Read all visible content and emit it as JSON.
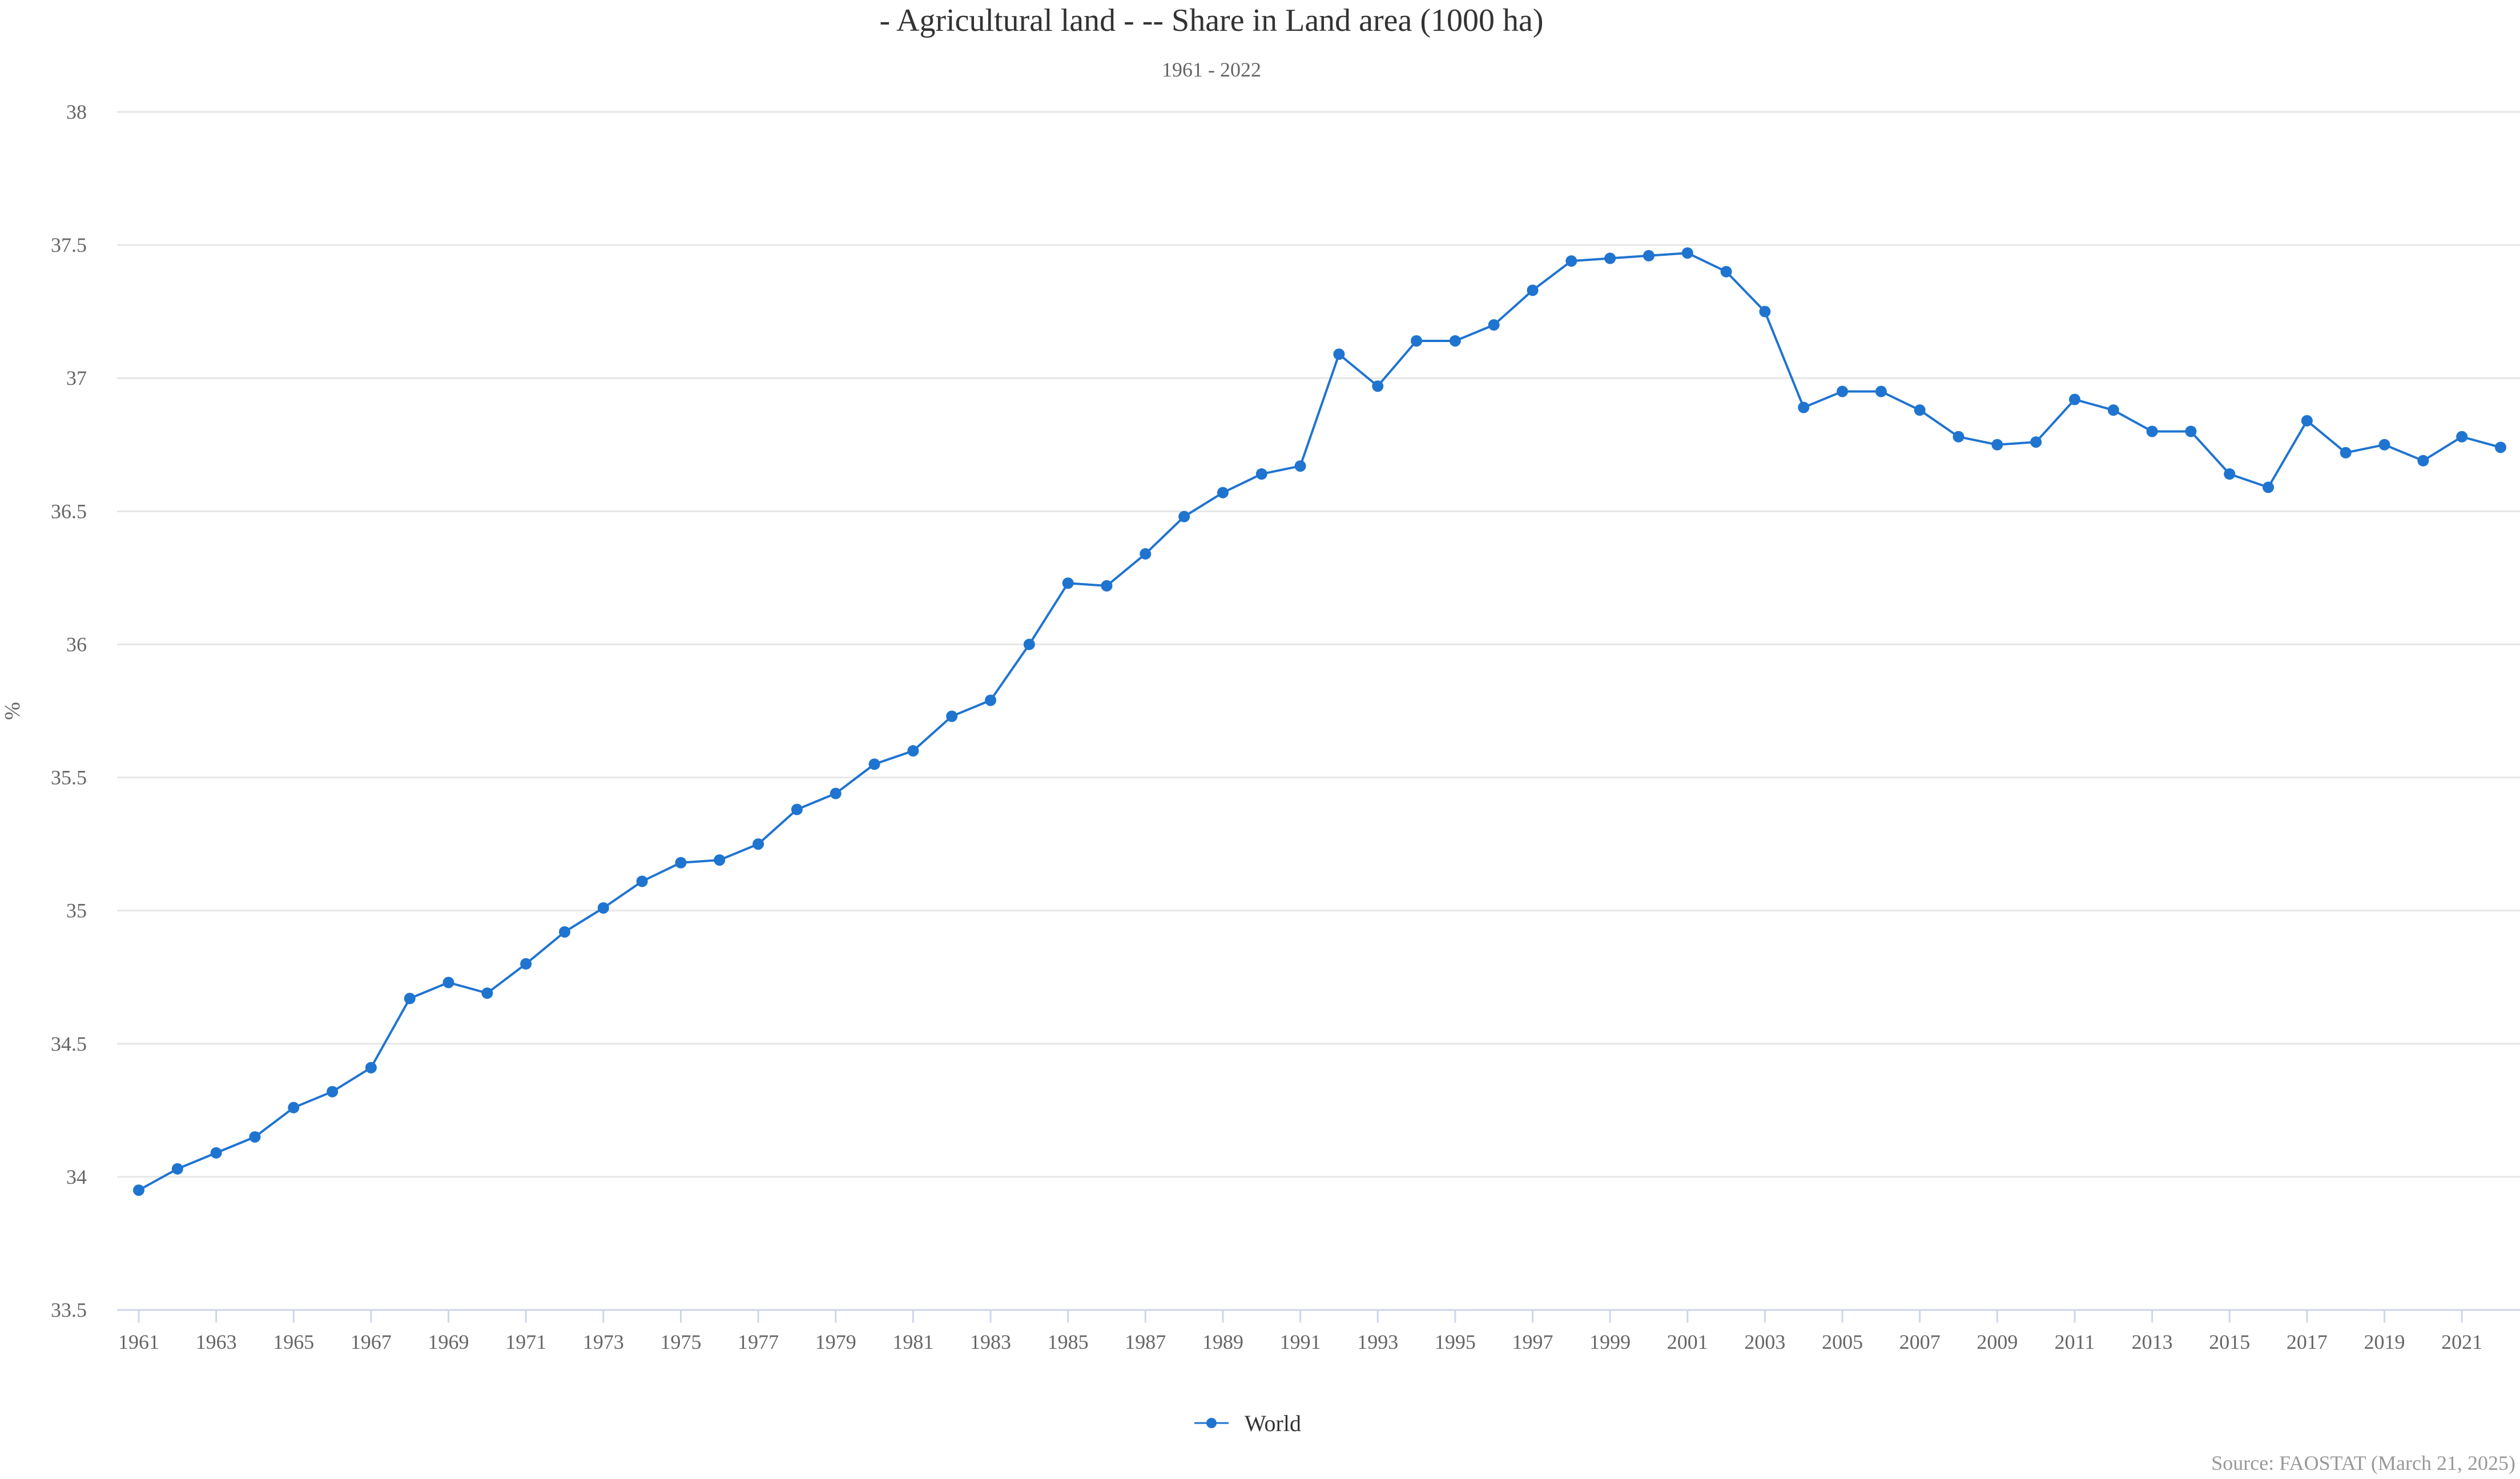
{
  "chart_data": {
    "type": "line",
    "title": "- Agricultural land - -- Share in Land area (1000 ha)",
    "subtitle": "1961 - 2022",
    "xlabel": "",
    "ylabel": "%",
    "ylim": [
      33.5,
      38
    ],
    "yticks": [
      33.5,
      34,
      34.5,
      35,
      35.5,
      36,
      36.5,
      37,
      37.5,
      38
    ],
    "xlim": [
      1961,
      2022
    ],
    "xtick_labels": [
      "1961",
      "1963",
      "1965",
      "1967",
      "1969",
      "1971",
      "1973",
      "1975",
      "1977",
      "1979",
      "1981",
      "1983",
      "1985",
      "1987",
      "1989",
      "1991",
      "1993",
      "1995",
      "1997",
      "1999",
      "2001",
      "2003",
      "2005",
      "2007",
      "2009",
      "2011",
      "2013",
      "2015",
      "2017",
      "2019",
      "2021"
    ],
    "grid": true,
    "legend_position": "bottom-center",
    "colors": {
      "series": "#1f74d0",
      "grid": "#e6e6e6",
      "axis": "#ccd6eb"
    },
    "series": [
      {
        "name": "World",
        "x": [
          1961,
          1962,
          1963,
          1964,
          1965,
          1966,
          1967,
          1968,
          1969,
          1970,
          1971,
          1972,
          1973,
          1974,
          1975,
          1976,
          1977,
          1978,
          1979,
          1980,
          1981,
          1982,
          1983,
          1984,
          1985,
          1986,
          1987,
          1988,
          1989,
          1990,
          1991,
          1992,
          1993,
          1994,
          1995,
          1996,
          1997,
          1998,
          1999,
          2000,
          2001,
          2002,
          2003,
          2004,
          2005,
          2006,
          2007,
          2008,
          2009,
          2010,
          2011,
          2012,
          2013,
          2014,
          2015,
          2016,
          2017,
          2018,
          2019,
          2020,
          2021,
          2022
        ],
        "values": [
          33.95,
          34.03,
          34.09,
          34.15,
          34.26,
          34.32,
          34.41,
          34.67,
          34.73,
          34.69,
          34.8,
          34.92,
          35.01,
          35.11,
          35.18,
          35.19,
          35.25,
          35.38,
          35.44,
          35.55,
          35.6,
          35.73,
          35.79,
          36.0,
          36.23,
          36.22,
          36.34,
          36.48,
          36.57,
          36.64,
          36.67,
          37.09,
          36.97,
          37.14,
          37.14,
          37.2,
          37.33,
          37.44,
          37.45,
          37.46,
          37.47,
          37.4,
          37.25,
          36.89,
          36.95,
          36.95,
          36.88,
          36.78,
          36.75,
          36.76,
          36.92,
          36.88,
          36.8,
          36.8,
          36.64,
          36.59,
          36.84,
          36.72,
          36.75,
          36.69,
          36.78,
          36.74
        ]
      }
    ]
  },
  "source": "Source: FAOSTAT (March 21, 2025)"
}
